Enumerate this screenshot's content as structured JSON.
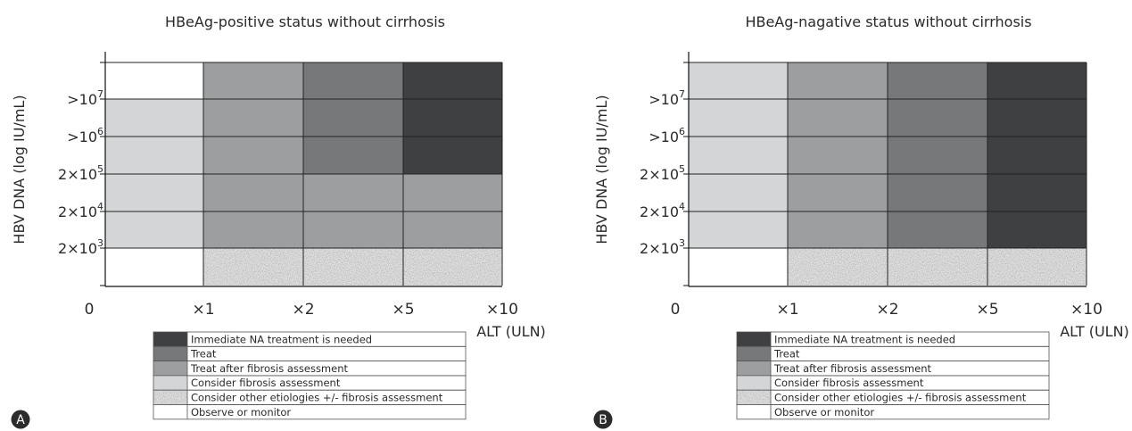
{
  "colors": {
    "immediate": "#3f4042",
    "treat": "#77787a",
    "treat_after_fibrosis": "#9d9ea0",
    "consider_fibrosis": "#d4d5d7",
    "consider_other": "#a7a8aa",
    "observe": "#ffffff",
    "grid": "#222222",
    "panel_badge": "#2b2b2b"
  },
  "chart_data": [
    {
      "type": "heatmap",
      "panel": "A",
      "title": "HBeAg-positive status without cirrhosis",
      "ylabel": "HBV DNA (log IU/mL)",
      "xlabel": "ALT (ULN)",
      "x_ticks": [
        "0",
        "×1",
        "×2",
        "×5",
        "×10"
      ],
      "x_columns": [
        "<×1",
        "×1–×2",
        "×2–×5",
        "×5–×10"
      ],
      "y_tick_labels": [
        {
          "base": "2×10",
          "exp": "3"
        },
        {
          "base": "2×10",
          "exp": "4"
        },
        {
          "base": "2×10",
          "exp": "5"
        },
        {
          "base": ">10",
          "exp": "6"
        },
        {
          "base": ">10",
          "exp": "7"
        }
      ],
      "y_rows_bottom_to_top": [
        "<2×10^3",
        "2×10^3–2×10^4",
        "2×10^4–2×10^5",
        "2×10^5–10^6",
        "10^6–10^7",
        ">10^7"
      ],
      "cells": [
        [
          "observe",
          "consider_other",
          "consider_other",
          "consider_other"
        ],
        [
          "consider_fibrosis",
          "treat_after_fibrosis",
          "treat_after_fibrosis",
          "treat_after_fibrosis"
        ],
        [
          "consider_fibrosis",
          "treat_after_fibrosis",
          "treat_after_fibrosis",
          "treat_after_fibrosis"
        ],
        [
          "consider_fibrosis",
          "treat_after_fibrosis",
          "treat",
          "immediate"
        ],
        [
          "consider_fibrosis",
          "treat_after_fibrosis",
          "treat",
          "immediate"
        ],
        [
          "observe",
          "treat_after_fibrosis",
          "treat",
          "immediate"
        ]
      ]
    },
    {
      "type": "heatmap",
      "panel": "B",
      "title": "HBeAg-nagative status without cirrhosis",
      "ylabel": "HBV DNA (log IU/mL)",
      "xlabel": "ALT (ULN)",
      "x_ticks": [
        "0",
        "×1",
        "×2",
        "×5",
        "×10"
      ],
      "x_columns": [
        "<×1",
        "×1–×2",
        "×2–×5",
        "×5–×10"
      ],
      "y_tick_labels": [
        {
          "base": "2×10",
          "exp": "3"
        },
        {
          "base": "2×10",
          "exp": "4"
        },
        {
          "base": "2×10",
          "exp": "5"
        },
        {
          "base": ">10",
          "exp": "6"
        },
        {
          "base": ">10",
          "exp": "7"
        }
      ],
      "y_rows_bottom_to_top": [
        "<2×10^3",
        "2×10^3–2×10^4",
        "2×10^4–2×10^5",
        "2×10^5–10^6",
        "10^6–10^7",
        ">10^7"
      ],
      "cells": [
        [
          "observe",
          "consider_other",
          "consider_other",
          "consider_other"
        ],
        [
          "consider_fibrosis",
          "treat_after_fibrosis",
          "treat",
          "immediate"
        ],
        [
          "consider_fibrosis",
          "treat_after_fibrosis",
          "treat",
          "immediate"
        ],
        [
          "consider_fibrosis",
          "treat_after_fibrosis",
          "treat",
          "immediate"
        ],
        [
          "consider_fibrosis",
          "treat_after_fibrosis",
          "treat",
          "immediate"
        ],
        [
          "consider_fibrosis",
          "treat_after_fibrosis",
          "treat",
          "immediate"
        ]
      ]
    }
  ],
  "legend": [
    {
      "key": "immediate",
      "label": "Immediate NA treatment is needed"
    },
    {
      "key": "treat",
      "label": "Treat"
    },
    {
      "key": "treat_after_fibrosis",
      "label": "Treat after fibrosis assessment"
    },
    {
      "key": "consider_fibrosis",
      "label": "Consider fibrosis assessment"
    },
    {
      "key": "consider_other",
      "label": "Consider other etiologies +/- fibrosis assessment"
    },
    {
      "key": "observe",
      "label": "Observe or monitor"
    }
  ]
}
